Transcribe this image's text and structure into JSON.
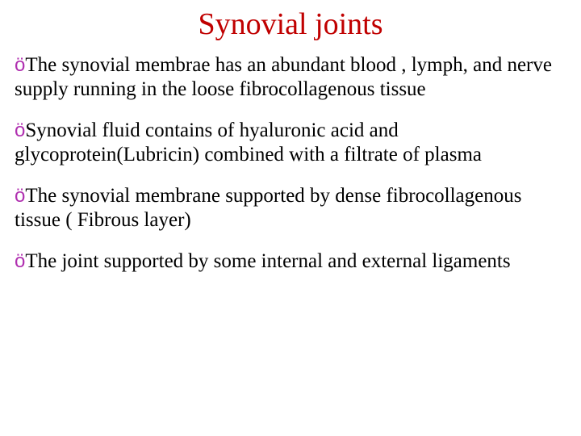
{
  "title": "Synovial joints",
  "title_color": "#c00000",
  "body_color": "#000000",
  "bullet_color": "#b030b0",
  "bullet_glyph": "ö",
  "title_fontsize": 38,
  "body_fontsize": 25,
  "bullets": [
    "The synovial membrae has an abundant blood , lymph, and nerve supply running in the loose fibrocollagenous tissue",
    "Synovial fluid contains of hyaluronic acid  and glycoprotein(Lubricin) combined with  a filtrate of plasma",
    "The synovial membrane supported by dense fibrocollagenous tissue ( Fibrous layer)",
    "The joint supported by some internal and external ligaments"
  ]
}
